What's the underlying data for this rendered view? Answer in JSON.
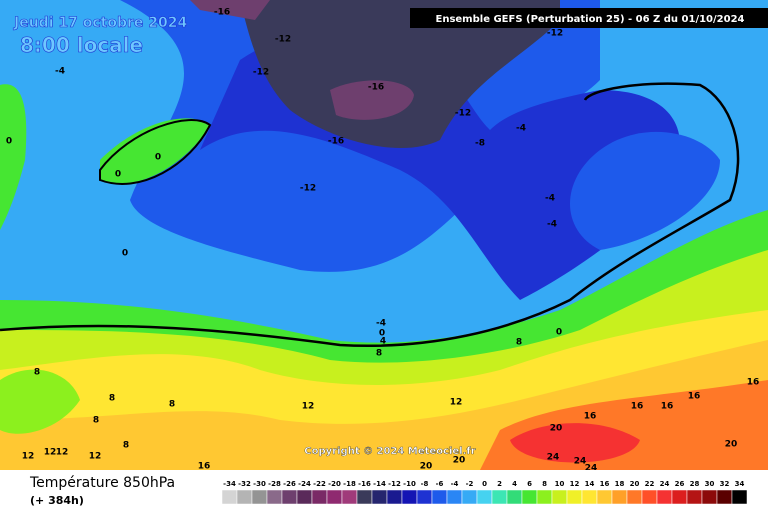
{
  "header": {
    "date": "Jeudi 17 octobre 2024",
    "time": "8:00 locale",
    "model": "Ensemble GEFS  (Perturbation 25)  -  06 Z du 01/10/2024"
  },
  "map": {
    "copyright": "Copyright © 2024 Meteociel.fr",
    "labels": [
      "-16",
      "-12",
      "-12",
      "-16",
      "-12",
      "-16",
      "-8",
      "-4",
      "-12",
      "-12",
      "-4",
      "0",
      "0",
      "0",
      "0",
      "-4",
      "-4",
      "-4",
      "0",
      "4",
      "8",
      "0",
      "8",
      "8",
      "8",
      "8",
      "12",
      "12",
      "8",
      "8",
      "16",
      "16",
      "16",
      "16",
      "16",
      "20",
      "20",
      "12",
      "12",
      "12",
      "12",
      "16",
      "20",
      "20",
      "24",
      "24",
      "24"
    ]
  },
  "footer": {
    "title": "Température 850hPa",
    "lead": "(+ 384h)",
    "scale": {
      "labels": [
        "-34",
        "-32",
        "-30",
        "-28",
        "-26",
        "-24",
        "-22",
        "-20",
        "-18",
        "-16",
        "-14",
        "-12",
        "-10",
        "-8",
        "-6",
        "-4",
        "-2",
        "0",
        "2",
        "4",
        "6",
        "8",
        "10",
        "12",
        "14",
        "16",
        "18",
        "20",
        "22",
        "24",
        "26",
        "28",
        "30",
        "32",
        "34"
      ],
      "colors": [
        "#d4d4d4",
        "#b4b4b4",
        "#949494",
        "#8a6a8a",
        "#6e3f6e",
        "#5a2a5a",
        "#7a2a66",
        "#8f2a70",
        "#a03a7a",
        "#3a3a5a",
        "#25256e",
        "#1a1a90",
        "#1414b4",
        "#1e32d2",
        "#1e5aeb",
        "#2a86f5",
        "#36aaf5",
        "#46d2f0",
        "#3ce6b4",
        "#32dc78",
        "#46e632",
        "#8cf01e",
        "#c8f01e",
        "#f0f028",
        "#ffe632",
        "#ffc832",
        "#ffa028",
        "#ff7828",
        "#ff5028",
        "#f53232",
        "#dc1e1e",
        "#b41414",
        "#8c0a0a",
        "#5a0000",
        "#000000"
      ]
    }
  }
}
